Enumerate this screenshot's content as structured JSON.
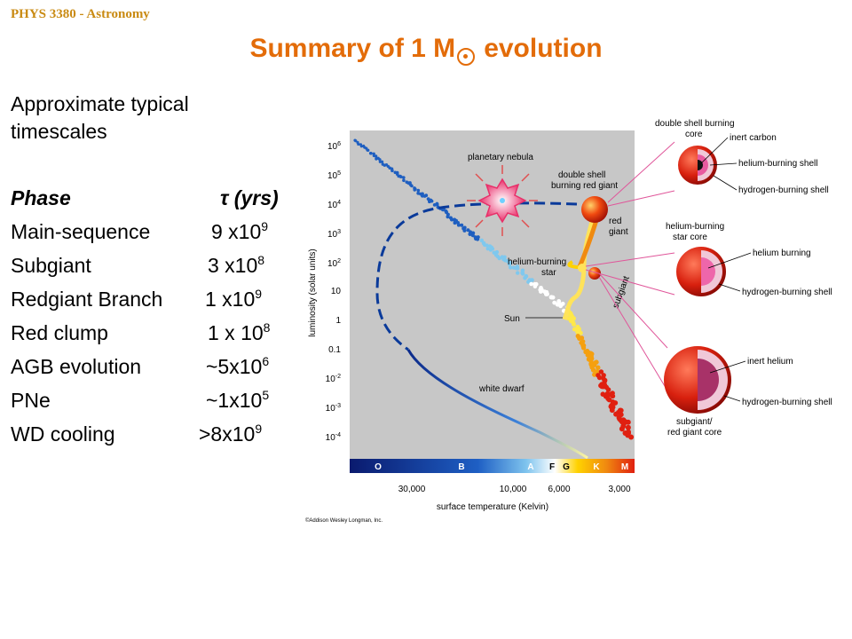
{
  "header": {
    "course": "PHYS 3380 - Astronomy",
    "title_prefix": "Summary of 1 M",
    "title_suffix": "evolution"
  },
  "intro": "Approximate typical timescales",
  "table": {
    "header": {
      "phase": "Phase",
      "tau_symbol": "τ",
      "tau_unit": "(yrs)"
    },
    "rows": [
      {
        "phase": "Main-sequence",
        "base": "9 x10",
        "exp": "9"
      },
      {
        "phase": "Subgiant",
        "base": "3 x10",
        "exp": "8"
      },
      {
        "phase": "Redgiant Branch",
        "base": "1 x10",
        "exp": "9"
      },
      {
        "phase": "Red clump",
        "base": "1 x 10",
        "exp": "8"
      },
      {
        "phase": "AGB evolution",
        "base": "~5x10",
        "exp": "6"
      },
      {
        "phase": "PNe",
        "base": "~1x10",
        "exp": "5"
      },
      {
        "phase": "WD cooling",
        "base": ">8x10",
        "exp": "9"
      }
    ]
  },
  "diagram": {
    "y_axis_label": "luminosity (solar units)",
    "x_axis_label": "surface temperature (Kelvin)",
    "x_ticks": [
      "30,000",
      "10,000",
      "6,000",
      "3,000"
    ],
    "spectral_classes": [
      "O",
      "B",
      "A",
      "F",
      "G",
      "K",
      "M"
    ],
    "labels": {
      "planetary_nebula": "planetary nebula",
      "double_shell_1": "double shell",
      "double_shell_2": "burning red giant",
      "red_1": "red",
      "red_2": "giant",
      "helium_star_1": "helium-burning",
      "helium_star_2": "star",
      "subgiant": "subgiant",
      "sun": "Sun",
      "white_dwarf": "white dwarf"
    },
    "copyright": "©Addison Wesley Longman, Inc."
  },
  "layers": {
    "top": {
      "title_1": "double shell burning",
      "title_2": "core",
      "labels": [
        "inert carbon",
        "helium-burning shell",
        "hydrogen-burning shell"
      ]
    },
    "middle": {
      "title_1": "helium-burning",
      "title_2": "star core",
      "labels": [
        "helium burning",
        "hydrogen-burning shell"
      ]
    },
    "bottom": {
      "labels": [
        "inert helium",
        "hydrogen-burning shell"
      ],
      "caption_1": "subgiant/",
      "caption_2": "red giant core"
    }
  },
  "colors": {
    "title": "#e36c09",
    "course": "#c98a12",
    "panel": "#c7c7c7",
    "connector": "#e0569a"
  }
}
